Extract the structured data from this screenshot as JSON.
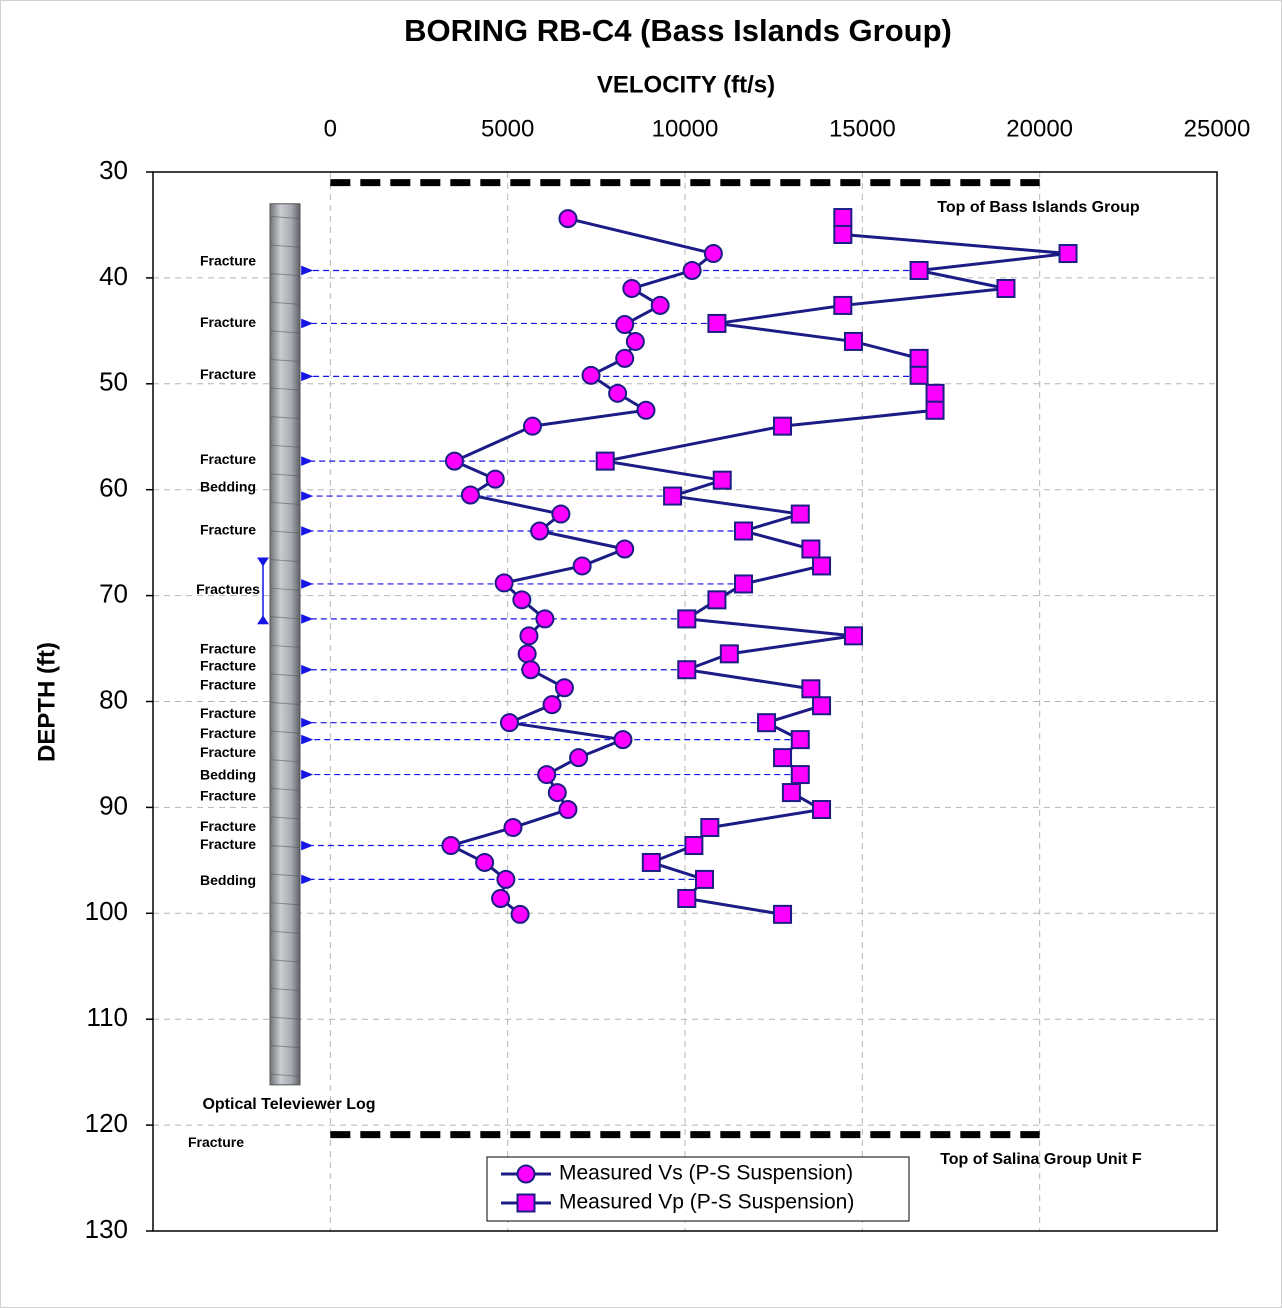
{
  "chart_data": {
    "type": "depth-profile",
    "title": "BORING RB-C4 (Bass Islands Group)",
    "x_label": "VELOCITY (ft/s)",
    "y_label": "DEPTH (ft)",
    "xlim": [
      -5000,
      25000
    ],
    "xticks": [
      0,
      5000,
      10000,
      15000,
      20000,
      25000
    ],
    "ylim": [
      30,
      130
    ],
    "yticks": [
      30,
      40,
      50,
      60,
      70,
      80,
      90,
      100,
      110,
      120,
      130
    ],
    "grid": true,
    "legend": "bottom-center",
    "series": [
      {
        "name": "Measured Vs (P-S Suspension)",
        "color": "#ff00ff",
        "line_color": "#1c1c86",
        "marker": "circle",
        "depths": [
          34.4,
          37.7,
          39.3,
          41.0,
          42.6,
          44.4,
          46.0,
          47.6,
          49.2,
          50.9,
          52.5,
          54.0,
          57.3,
          59.0,
          60.5,
          62.3,
          63.9,
          65.6,
          67.2,
          68.8,
          70.4,
          72.2,
          73.8,
          75.5,
          77.0,
          78.7,
          80.3,
          82.0,
          83.6,
          85.3,
          86.9,
          88.6,
          90.2,
          91.9,
          93.6,
          95.2,
          96.8,
          98.6,
          100.1
        ],
        "values": [
          6700,
          10800,
          10200,
          8500,
          9300,
          8300,
          8600,
          8300,
          7350,
          8100,
          8900,
          5700,
          3500,
          4650,
          3950,
          6500,
          5900,
          8300,
          7100,
          4900,
          5400,
          6050,
          5600,
          5550,
          5650,
          6600,
          6250,
          5050,
          8250,
          7000,
          6100,
          6400,
          6700,
          5150,
          3400,
          4350,
          4950,
          4800,
          5350
        ]
      },
      {
        "name": "Measured Vp (P-S Suspension)",
        "color": "#ff00ff",
        "line_color": "#1c1c86",
        "marker": "square",
        "depths": [
          34.3,
          35.9,
          37.7,
          39.3,
          41.0,
          42.6,
          44.3,
          46.0,
          47.6,
          49.2,
          50.9,
          52.5,
          54.0,
          57.3,
          59.1,
          60.6,
          62.3,
          63.9,
          65.6,
          67.2,
          68.9,
          70.4,
          72.2,
          73.8,
          75.5,
          77.0,
          78.8,
          80.4,
          82.0,
          83.6,
          85.3,
          86.9,
          88.6,
          90.2,
          91.9,
          93.6,
          95.2,
          96.8,
          98.6,
          100.1
        ],
        "values": [
          14450,
          14450,
          20800,
          16600,
          19050,
          14450,
          10900,
          14750,
          16600,
          16600,
          17050,
          17050,
          12750,
          7750,
          11050,
          9650,
          13250,
          11650,
          13550,
          13850,
          11650,
          10900,
          10050,
          14750,
          11250,
          10050,
          13550,
          13850,
          12300,
          13250,
          12750,
          13250,
          13000,
          13850,
          10700,
          10250,
          9050,
          10550,
          10050,
          12750
        ]
      }
    ],
    "boundaries": [
      {
        "label": "Top of Bass Islands Group",
        "depth": 31,
        "from": 0,
        "to": 20000
      },
      {
        "label": "Top of Salina Group Unit F",
        "depth": 120.9,
        "from": 0,
        "to": 20000
      }
    ],
    "log": {
      "label": "Optical Televiewer Log",
      "top": 33,
      "bottom": 116.2
    },
    "annotations": [
      {
        "text": "Fracture",
        "depth": 38.5
      },
      {
        "text": "Fracture",
        "depth": 44.3
      },
      {
        "text": "Fracture",
        "depth": 49.2
      },
      {
        "text": "Fracture",
        "depth": 57.2
      },
      {
        "text": "Bedding",
        "depth": 59.8
      },
      {
        "text": "Fracture",
        "depth": 63.9
      },
      {
        "text": "Fractures",
        "depth": 69.5,
        "span": [
          66.4,
          72.7
        ]
      },
      {
        "text": "Fracture",
        "depth": 75.1
      },
      {
        "text": "Fracture",
        "depth": 76.7
      },
      {
        "text": "Fracture",
        "depth": 78.5
      },
      {
        "text": "Fracture",
        "depth": 81.2
      },
      {
        "text": "Fracture",
        "depth": 83.1
      },
      {
        "text": "Fracture",
        "depth": 84.9
      },
      {
        "text": "Bedding",
        "depth": 87.0
      },
      {
        "text": "Fracture",
        "depth": 89.0
      },
      {
        "text": "Fracture",
        "depth": 91.9
      },
      {
        "text": "Fracture",
        "depth": 93.6
      },
      {
        "text": "Bedding",
        "depth": 97.0
      },
      {
        "text": "Fracture",
        "depth": 121.7
      }
    ],
    "arrows": [
      {
        "depth": 39.3,
        "to": 16600
      },
      {
        "depth": 44.3,
        "to": 10900
      },
      {
        "depth": 49.3,
        "to": 16600
      },
      {
        "depth": 57.3,
        "to": 7750
      },
      {
        "depth": 60.6,
        "to": 9650
      },
      {
        "depth": 63.9,
        "to": 11650
      },
      {
        "depth": 68.9,
        "to": 11650
      },
      {
        "depth": 72.2,
        "to": 10050
      },
      {
        "depth": 77.0,
        "to": 10050
      },
      {
        "depth": 82.0,
        "to": 12300
      },
      {
        "depth": 83.6,
        "to": 13250
      },
      {
        "depth": 86.9,
        "to": 13250
      },
      {
        "depth": 93.6,
        "to": 10250
      },
      {
        "depth": 96.8,
        "to": 10550
      }
    ]
  }
}
